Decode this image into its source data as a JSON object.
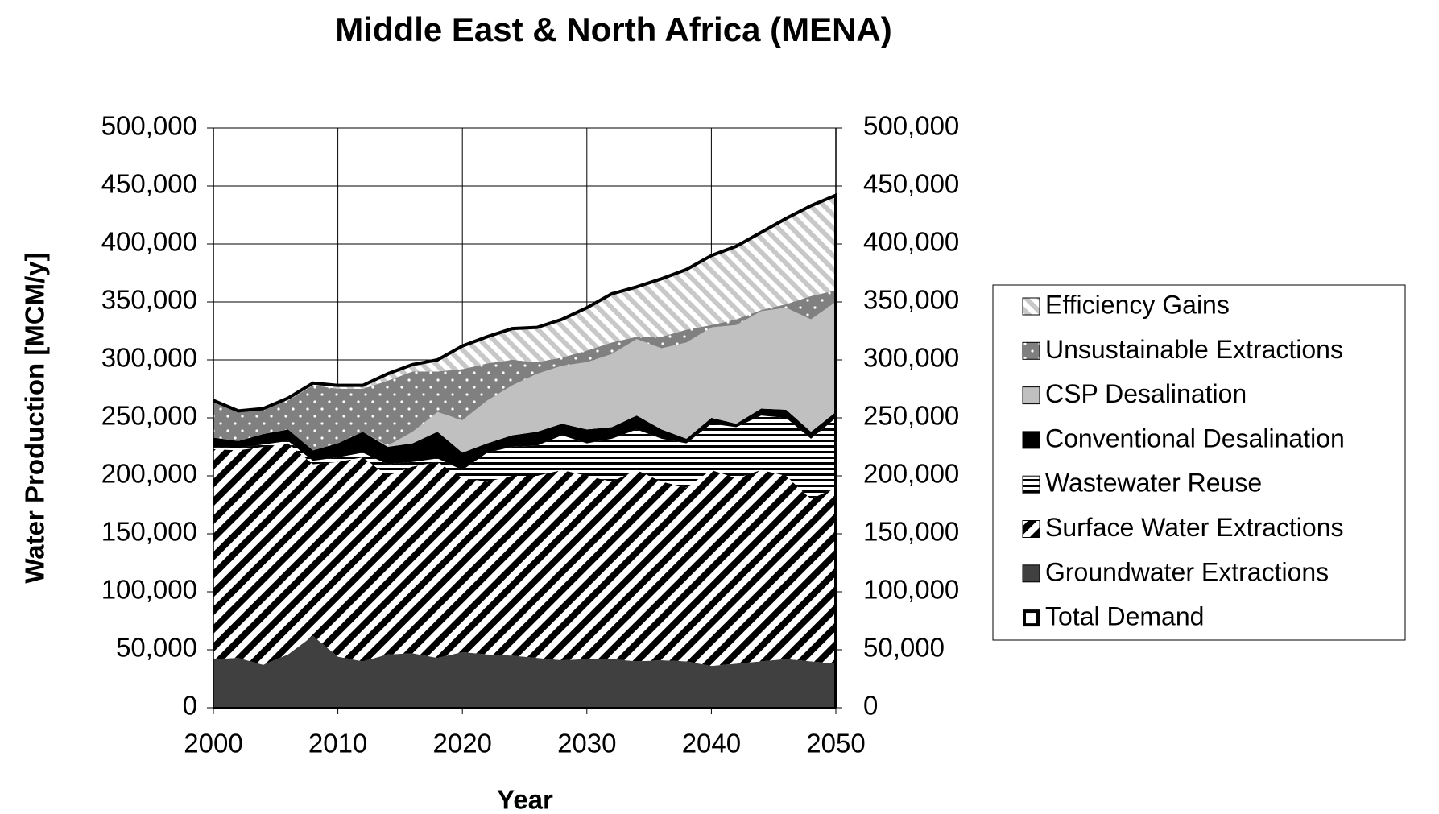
{
  "chart_data": {
    "type": "stacked-area",
    "title": "Middle East & North Africa (MENA)",
    "xlabel": "Year",
    "ylabel": "Water Production [MCM/y]",
    "x": [
      2000,
      2002,
      2004,
      2006,
      2008,
      2010,
      2012,
      2014,
      2016,
      2018,
      2020,
      2022,
      2024,
      2026,
      2028,
      2030,
      2032,
      2034,
      2036,
      2038,
      2040,
      2042,
      2044,
      2046,
      2048,
      2050
    ],
    "xlim": [
      2000,
      2050
    ],
    "xticks": [
      2000,
      2010,
      2020,
      2030,
      2040,
      2050
    ],
    "ylim": [
      0,
      500000
    ],
    "yticks": [
      0,
      {
        "value": 50000,
        "label": "50,000"
      },
      {
        "value": 100000,
        "label": "100,000"
      },
      {
        "value": 150000,
        "label": "150,000"
      },
      {
        "value": 200000,
        "label": "200,000"
      },
      {
        "value": 250000,
        "label": "250,000"
      },
      {
        "value": 300000,
        "label": "300,000"
      },
      {
        "value": 350000,
        "label": "350,000"
      },
      {
        "value": 400000,
        "label": "400,000"
      },
      {
        "value": 450000,
        "label": "450,000"
      },
      {
        "value": 500000,
        "label": "500,000"
      }
    ],
    "y2lim": [
      0,
      500000
    ],
    "y2ticks": [
      0,
      {
        "value": 50000,
        "label": "50,000"
      },
      {
        "value": 100000,
        "label": "100,000"
      },
      {
        "value": 150000,
        "label": "150,000"
      },
      {
        "value": 200000,
        "label": "200,000"
      },
      {
        "value": 250000,
        "label": "250,000"
      },
      {
        "value": 300000,
        "label": "300,000"
      },
      {
        "value": 350000,
        "label": "350,000"
      },
      {
        "value": 400000,
        "label": "400,000"
      },
      {
        "value": 450000,
        "label": "450,000"
      },
      {
        "value": 500000,
        "label": "500,000"
      }
    ],
    "grid": true,
    "legend": "right",
    "series": [
      {
        "name": "Groundwater Extractions",
        "color": "#404040",
        "pattern": "solid",
        "values": [
          42000,
          43000,
          37000,
          46000,
          62000,
          44000,
          40000,
          46000,
          47000,
          43000,
          48000,
          46000,
          45000,
          43000,
          41000,
          42000,
          42000,
          40000,
          41000,
          40000,
          36000,
          38000,
          40000,
          42000,
          40000,
          38000
        ]
      },
      {
        "name": "Surface Water Extractions",
        "color": "#000000",
        "pattern": "diagonal",
        "values": [
          181000,
          179000,
          188000,
          182000,
          148000,
          168000,
          176000,
          154000,
          161000,
          169000,
          150000,
          149000,
          155000,
          157000,
          164000,
          158000,
          153000,
          165000,
          154000,
          150000,
          169000,
          160000,
          165000,
          158000,
          140000,
          152000
        ]
      },
      {
        "name": "Wastewater Reuse",
        "color": "#000000",
        "pattern": "horizontal",
        "values": [
          2000,
          2000,
          2000,
          2000,
          3000,
          4000,
          4000,
          10000,
          4000,
          3000,
          7000,
          25000,
          25000,
          26000,
          30000,
          28000,
          37000,
          35000,
          37000,
          38000,
          40000,
          44000,
          47000,
          50000,
          52000,
          60000
        ]
      },
      {
        "name": "Conventional Desalination",
        "color": "#000000",
        "pattern": "solid",
        "values": [
          8000,
          6000,
          9000,
          10000,
          9000,
          12000,
          18000,
          15000,
          16000,
          23000,
          15000,
          8000,
          10000,
          12000,
          10000,
          12000,
          10000,
          12000,
          8000,
          4000,
          5000,
          3000,
          6000,
          7000,
          6000,
          5000
        ]
      },
      {
        "name": "CSP Desalination",
        "color": "#c0c0c0",
        "pattern": "solid",
        "values": [
          0,
          0,
          0,
          0,
          0,
          0,
          0,
          1000,
          10000,
          17000,
          28000,
          37000,
          43000,
          50000,
          50000,
          58000,
          63000,
          66000,
          70000,
          83000,
          78000,
          85000,
          84000,
          88000,
          97000,
          95000
        ]
      },
      {
        "name": "Unsustainable Extractions",
        "color": "#808080",
        "pattern": "dots",
        "values": [
          32000,
          25000,
          22000,
          25000,
          56000,
          47000,
          37000,
          56000,
          52000,
          35000,
          44000,
          32000,
          22000,
          10000,
          7000,
          10000,
          10000,
          2000,
          10000,
          11000,
          2000,
          5000,
          1000,
          3000,
          20000,
          10000
        ]
      },
      {
        "name": "Efficiency Gains",
        "color": "#c8c8c8",
        "pattern": "light-diagonal",
        "values": [
          0,
          1000,
          0,
          2000,
          2000,
          3000,
          3000,
          6000,
          6000,
          10000,
          20000,
          23000,
          27000,
          30000,
          33000,
          37000,
          42000,
          43000,
          50000,
          52000,
          60000,
          63000,
          67000,
          74000,
          78000,
          82000
        ]
      },
      {
        "name": "Total Demand",
        "color": "#000000",
        "type": "line",
        "values": [
          265000,
          256000,
          258000,
          267000,
          280000,
          278000,
          278000,
          288000,
          296000,
          300000,
          312000,
          320000,
          327000,
          328000,
          335000,
          345000,
          357000,
          363000,
          370000,
          378000,
          390000,
          398000,
          410000,
          422000,
          433000,
          442000
        ]
      }
    ]
  }
}
